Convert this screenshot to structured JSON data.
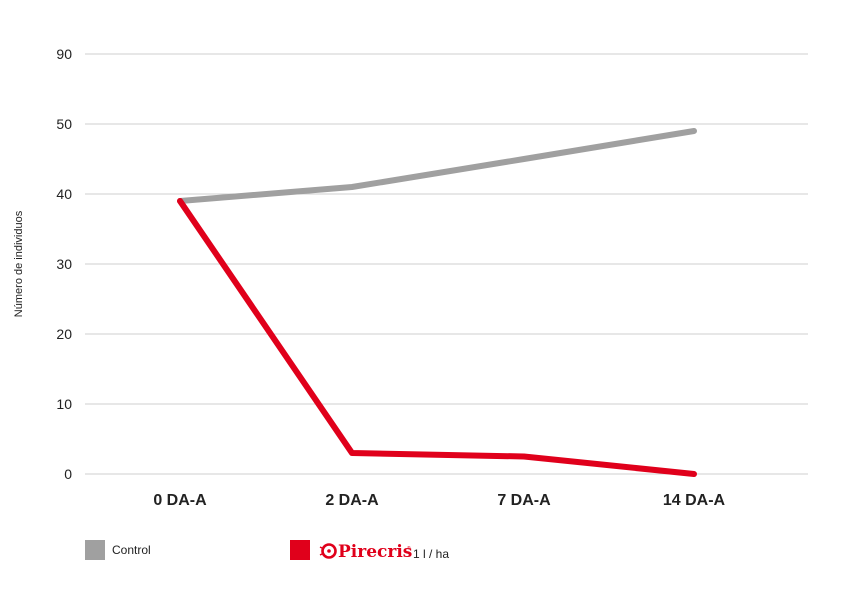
{
  "chart_data": {
    "type": "line",
    "ylabel": "Número de individuos",
    "yticks": [
      "0",
      "10",
      "20",
      "30",
      "40",
      "50",
      "90"
    ],
    "categories": [
      "0 DA-A",
      "2 DA-A",
      "7 DA-A",
      "14 DA-A"
    ],
    "grid": true,
    "legend_position": "bottom-left",
    "series": [
      {
        "name": "Control",
        "color": "#a0a0a0",
        "values": [
          39,
          41,
          45,
          49
        ]
      },
      {
        "name": "Pirecris",
        "color": "#e0001b",
        "values": [
          39,
          3,
          2.5,
          0
        ]
      }
    ]
  },
  "legend": {
    "control_label": "Control",
    "brand_name": "Pirecris",
    "brand_mark": "®",
    "dose": "1 l / ha",
    "control_color": "#a0a0a0",
    "brand_color": "#e0001b",
    "brand_icon": "pirecris-logo-icon"
  }
}
